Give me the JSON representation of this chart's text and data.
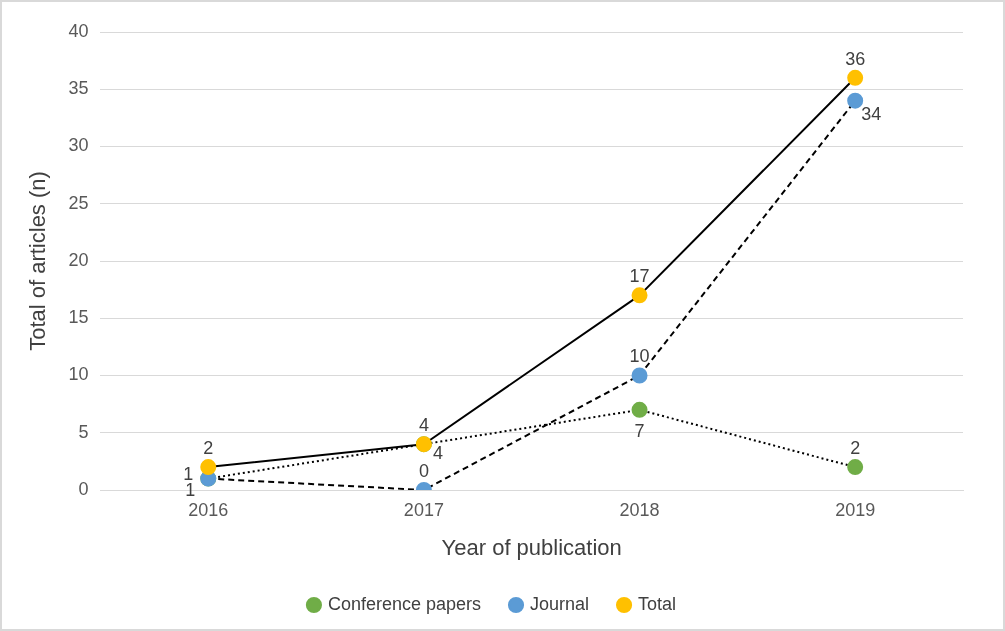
{
  "chart_data": {
    "type": "line",
    "xlabel": "Year of publication",
    "ylabel": "Total of articles (n)",
    "categories": [
      "2016",
      "2017",
      "2018",
      "2019"
    ],
    "series": [
      {
        "name": "Conference papers",
        "color": "#70ad47",
        "line_style": "dotted",
        "values": [
          1,
          4,
          7,
          2
        ]
      },
      {
        "name": "Journal",
        "color": "#5b9bd5",
        "line_style": "dashed",
        "values": [
          1,
          0,
          10,
          34
        ]
      },
      {
        "name": "Total",
        "color": "#ffc000",
        "line_style": "solid",
        "values": [
          2,
          4,
          17,
          36
        ]
      }
    ],
    "ylim": [
      0,
      40
    ],
    "yticks": [
      0,
      5,
      10,
      15,
      20,
      25,
      30,
      35,
      40
    ],
    "grid": "y",
    "legend": "bottom",
    "marker": "circle",
    "data_labels": true
  }
}
